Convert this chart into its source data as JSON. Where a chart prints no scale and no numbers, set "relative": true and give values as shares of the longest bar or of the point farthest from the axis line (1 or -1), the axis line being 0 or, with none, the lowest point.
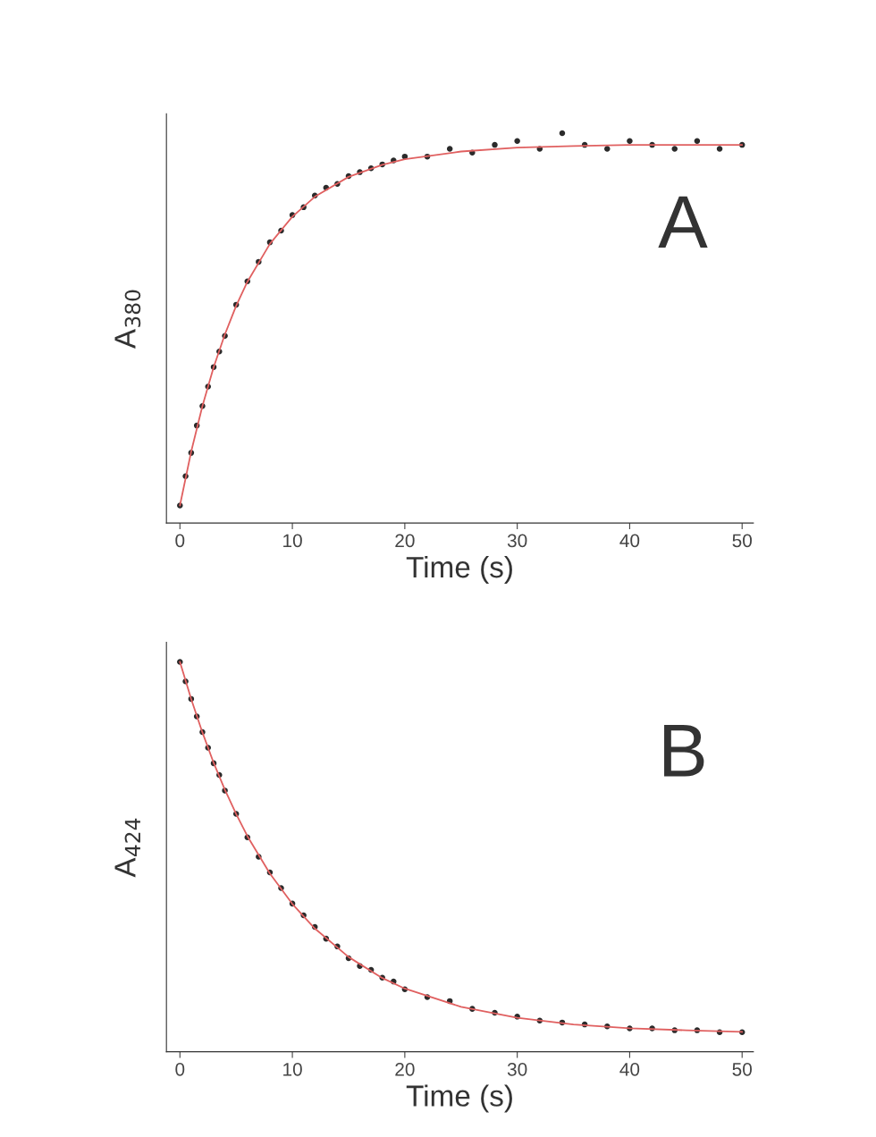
{
  "chart_data": [
    {
      "type": "scatter",
      "relative": true,
      "xlabel": "Time (s)",
      "ylabel": "A$_{380}$",
      "xlim": [
        -1.2,
        51
      ],
      "xticks": [
        0,
        10,
        20,
        30,
        40,
        50
      ],
      "tick_labels": "x",
      "annotations": [
        "A"
      ],
      "series": [
        {
          "marker": "circle",
          "color": "#2b2b2b",
          "x": [
            0,
            0.5,
            1,
            1.5,
            2,
            2.5,
            3,
            3.5,
            4,
            5,
            6,
            7,
            8,
            9,
            10,
            11,
            12,
            13,
            14,
            15,
            16,
            17,
            18,
            19,
            20,
            22,
            24,
            26,
            28,
            30,
            32,
            34,
            36,
            38,
            40,
            42,
            44,
            46,
            48,
            50
          ],
          "values": [
            0.045,
            0.12,
            0.18,
            0.25,
            0.3,
            0.35,
            0.4,
            0.44,
            0.48,
            0.56,
            0.62,
            0.67,
            0.72,
            0.75,
            0.79,
            0.81,
            0.84,
            0.86,
            0.87,
            0.89,
            0.9,
            0.91,
            0.92,
            0.93,
            0.94,
            0.94,
            0.96,
            0.95,
            0.97,
            0.98,
            0.96,
            1.0,
            0.97,
            0.96,
            0.98,
            0.97,
            0.96,
            0.98,
            0.96,
            0.97
          ]
        },
        {
          "type": "line",
          "color": "#e06060",
          "x": [
            0,
            1,
            2,
            3,
            4,
            5,
            6,
            8,
            10,
            12,
            15,
            18,
            20,
            25,
            30,
            35,
            40,
            45,
            50
          ],
          "values": [
            0.045,
            0.183,
            0.3,
            0.4,
            0.484,
            0.557,
            0.619,
            0.716,
            0.786,
            0.837,
            0.888,
            0.919,
            0.933,
            0.953,
            0.963,
            0.967,
            0.97,
            0.97,
            0.97
          ]
        }
      ]
    },
    {
      "type": "scatter",
      "relative": true,
      "xlabel": "Time (s)",
      "ylabel": "A$_{424}$",
      "xlim": [
        -1.2,
        51
      ],
      "xticks": [
        0,
        10,
        20,
        30,
        40,
        50
      ],
      "tick_labels": "x",
      "annotations": [
        "B"
      ],
      "series": [
        {
          "marker": "circle",
          "color": "#2b2b2b",
          "x": [
            0,
            0.5,
            1,
            1.5,
            2,
            2.5,
            3,
            3.5,
            4,
            5,
            6,
            7,
            8,
            9,
            10,
            11,
            12,
            13,
            14,
            15,
            16,
            17,
            18,
            19,
            20,
            22,
            24,
            26,
            28,
            30,
            32,
            34,
            36,
            38,
            40,
            42,
            44,
            46,
            48,
            50
          ],
          "values": [
            1.0,
            0.95,
            0.905,
            0.86,
            0.82,
            0.78,
            0.74,
            0.71,
            0.67,
            0.61,
            0.55,
            0.5,
            0.46,
            0.42,
            0.38,
            0.35,
            0.32,
            0.29,
            0.27,
            0.24,
            0.22,
            0.21,
            0.19,
            0.18,
            0.16,
            0.14,
            0.13,
            0.11,
            0.1,
            0.09,
            0.08,
            0.075,
            0.07,
            0.065,
            0.06,
            0.06,
            0.055,
            0.055,
            0.05,
            0.05
          ]
        },
        {
          "type": "line",
          "color": "#e06060",
          "x": [
            0,
            1,
            2,
            3,
            4,
            5,
            6,
            8,
            10,
            12,
            15,
            18,
            20,
            25,
            30,
            35,
            40,
            45,
            50
          ],
          "values": [
            1.0,
            0.905,
            0.819,
            0.741,
            0.672,
            0.61,
            0.553,
            0.457,
            0.379,
            0.316,
            0.243,
            0.189,
            0.162,
            0.115,
            0.087,
            0.07,
            0.06,
            0.055,
            0.051
          ]
        }
      ]
    }
  ]
}
